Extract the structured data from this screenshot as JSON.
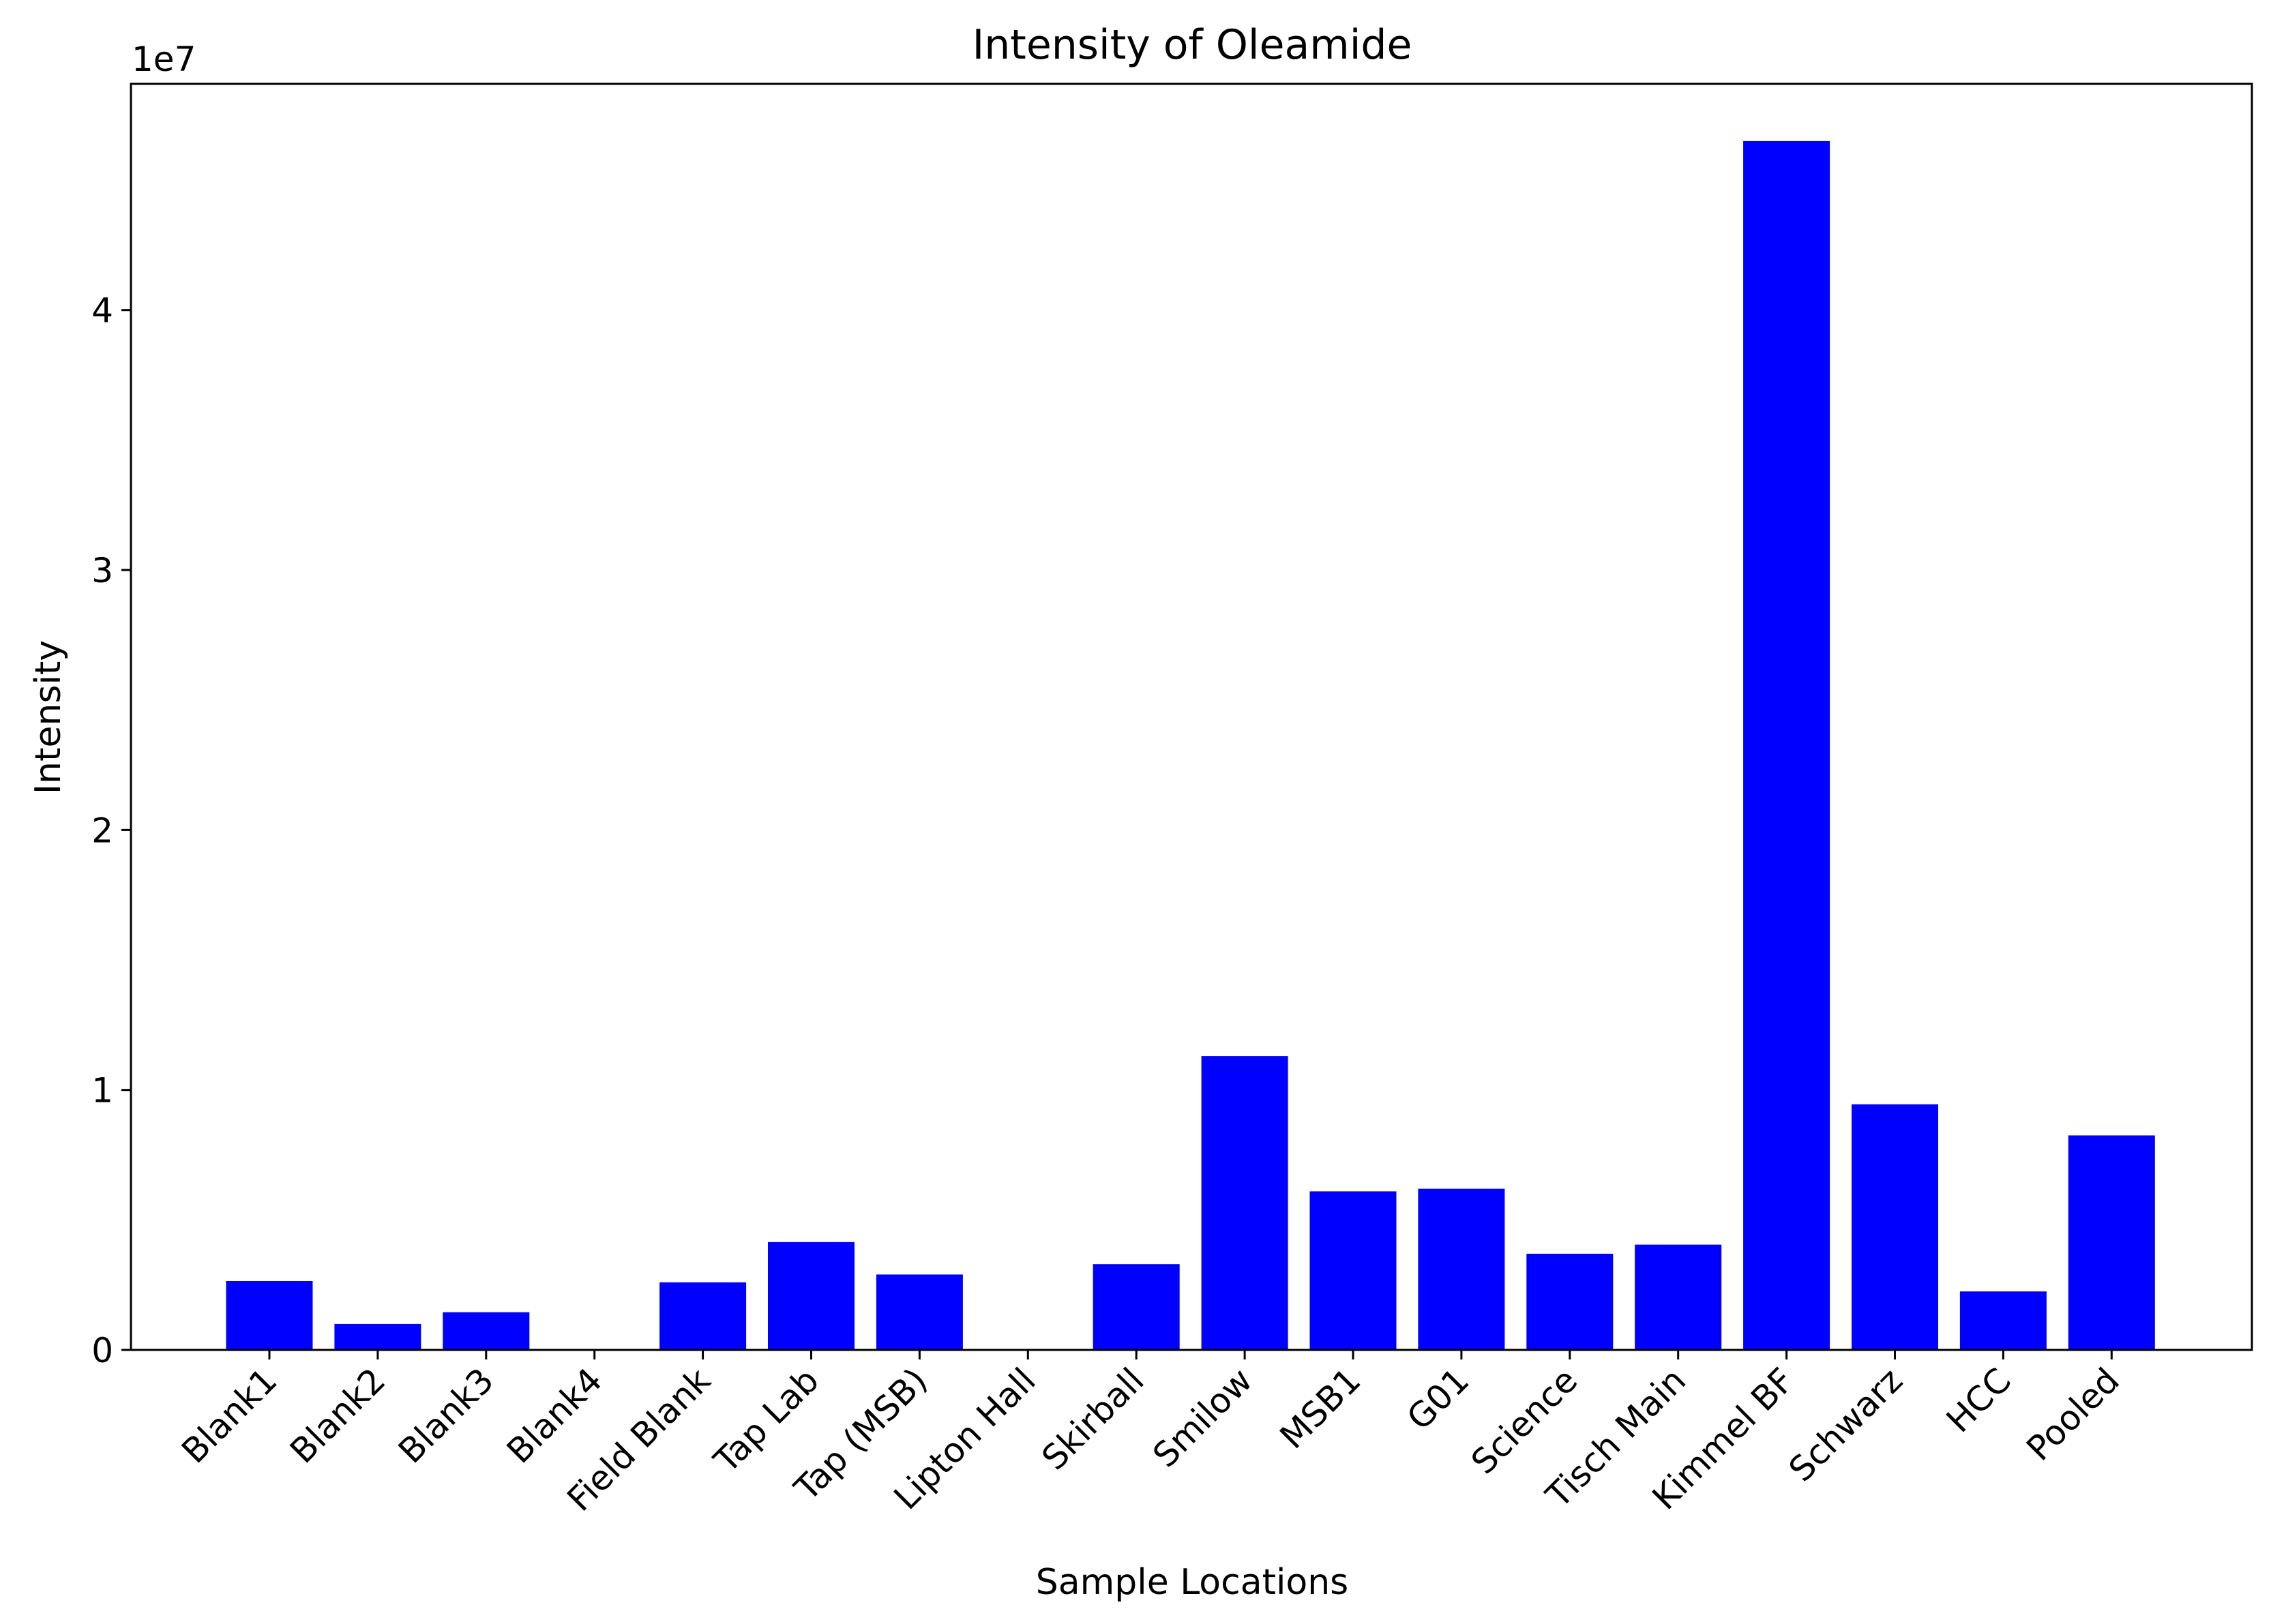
{
  "chart_data": {
    "type": "bar",
    "title": "Intensity of Oleamide",
    "xlabel": "Sample Locations",
    "ylabel": "Intensity",
    "y_offset_label": "1e7",
    "ylim": [
      0,
      48700000
    ],
    "yticks": [
      0,
      10000000,
      20000000,
      30000000,
      40000000
    ],
    "ytick_labels": [
      "0",
      "1",
      "2",
      "3",
      "4"
    ],
    "bar_color": "#0000ff",
    "categories": [
      "Blank1",
      "Blank2",
      "Blank3",
      "Blank4",
      "Field Blank",
      "Tap Lab",
      "Tap (MSB)",
      "Lipton Hall",
      "Skirball",
      "Smilow",
      "MSB1",
      "G01",
      "Science",
      "Tisch Main",
      "Kimmel BF",
      "Schwarz",
      "HCC",
      "Pooled"
    ],
    "values": [
      2650000,
      1000000,
      1450000,
      0,
      2600000,
      4150000,
      2900000,
      0,
      3300000,
      11300000,
      6100000,
      6200000,
      3700000,
      4050000,
      46500000,
      9450000,
      2250000,
      8250000
    ],
    "grid": false,
    "legend": "none"
  }
}
